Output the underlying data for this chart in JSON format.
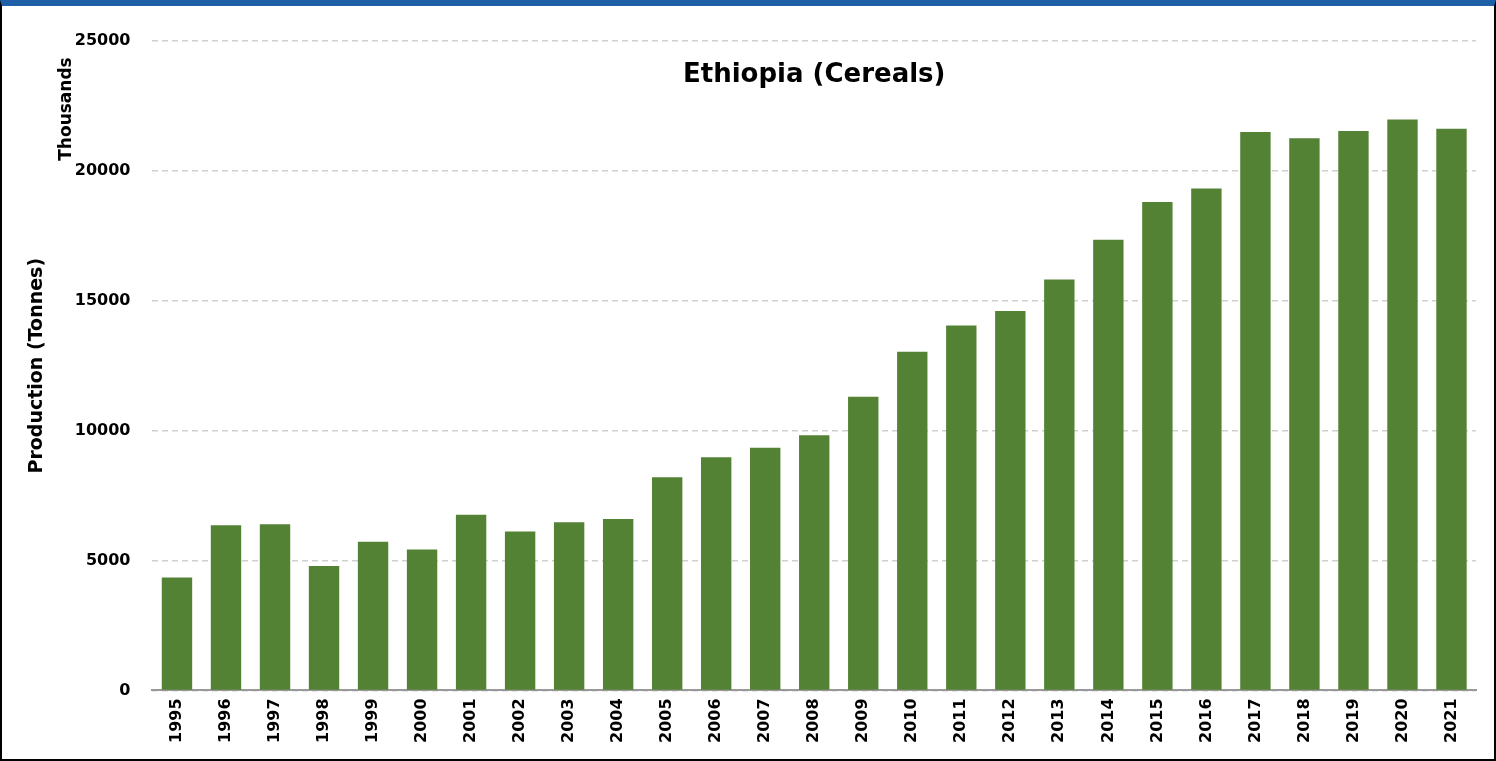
{
  "chart_data": {
    "type": "bar",
    "title": "Ethiopia (Cereals)",
    "ylabel": "Production (Tonnes)",
    "annotations": [
      "Thousands"
    ],
    "categories": [
      "1995",
      "1996",
      "1997",
      "1998",
      "1999",
      "2000",
      "2001",
      "2002",
      "2003",
      "2004",
      "2005",
      "2006",
      "2007",
      "2008",
      "2009",
      "2010",
      "2011",
      "2012",
      "2013",
      "2014",
      "2015",
      "2016",
      "2017",
      "2018",
      "2019",
      "2020",
      "2021"
    ],
    "values": [
      4350,
      6360,
      6400,
      4790,
      5720,
      5430,
      6760,
      6120,
      6480,
      6600,
      8210,
      8980,
      9340,
      9820,
      11310,
      13040,
      14050,
      14610,
      15820,
      17350,
      18800,
      19320,
      21500,
      21260,
      21540,
      21980,
      21620
    ],
    "color": "#548235",
    "ylim": [
      0,
      25000
    ],
    "yticks": [
      0,
      5000,
      10000,
      15000,
      20000,
      25000
    ],
    "grid": "y"
  }
}
